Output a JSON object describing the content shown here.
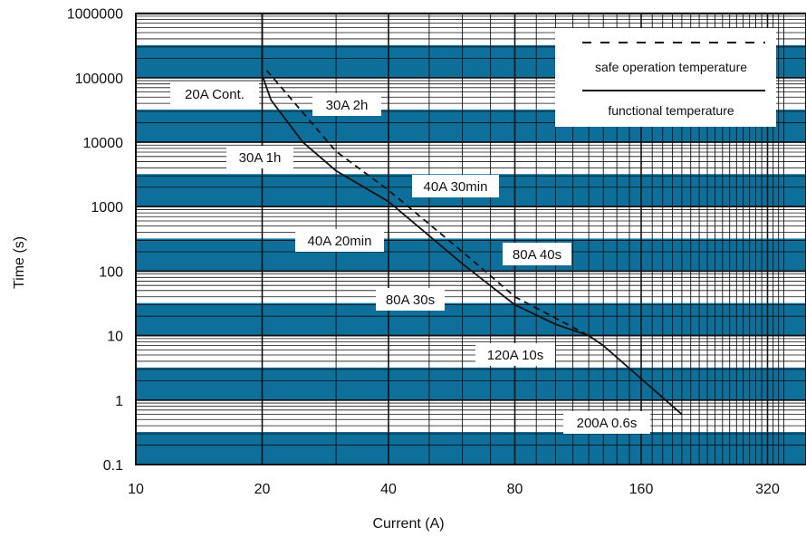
{
  "chart_data": {
    "type": "line",
    "title": "",
    "xlabel": "Current (A)",
    "ylabel": "Time (s)",
    "x_scale": "log2",
    "y_scale": "log10",
    "xlim": [
      10,
      350
    ],
    "ylim": [
      0.1,
      1000000
    ],
    "x_ticks": [
      "10",
      "20",
      "40",
      "80",
      "160",
      "320"
    ],
    "y_ticks": [
      "1000000",
      "100000",
      "10000",
      "1000",
      "100",
      "10",
      "1",
      "0.1"
    ],
    "legend": {
      "position": "top-right",
      "entries": [
        "safe operation temperature",
        "functional temperature"
      ]
    },
    "series": [
      {
        "name": "safe operation temperature",
        "style": "dashed",
        "points": [
          [
            20.5,
            130000
          ],
          [
            30,
            7200
          ],
          [
            40,
            1800
          ],
          [
            60,
            200
          ],
          [
            80,
            40
          ],
          [
            120,
            10
          ]
        ]
      },
      {
        "name": "functional temperature",
        "style": "solid",
        "points": [
          [
            20,
            1000000
          ],
          [
            20,
            110000
          ],
          [
            21,
            45000
          ],
          [
            25,
            10000
          ],
          [
            30,
            3600
          ],
          [
            40,
            1200
          ],
          [
            60,
            130
          ],
          [
            80,
            30
          ],
          [
            100,
            15
          ],
          [
            120,
            10
          ],
          [
            130,
            7
          ],
          [
            200,
            0.6
          ]
        ]
      }
    ],
    "annotations": [
      {
        "text": "20A Cont."
      },
      {
        "text": "30A 2h"
      },
      {
        "text": "30A 1h"
      },
      {
        "text": "40A 30min"
      },
      {
        "text": "40A 20min"
      },
      {
        "text": "80A 40s"
      },
      {
        "text": "80A 30s"
      },
      {
        "text": "120A 10s"
      },
      {
        "text": "200A 0.6s"
      }
    ],
    "colors": {
      "band": "#0d6f9a",
      "plot_background": "#ffffff",
      "grid_line": "#111111",
      "curve": "#111111"
    }
  }
}
